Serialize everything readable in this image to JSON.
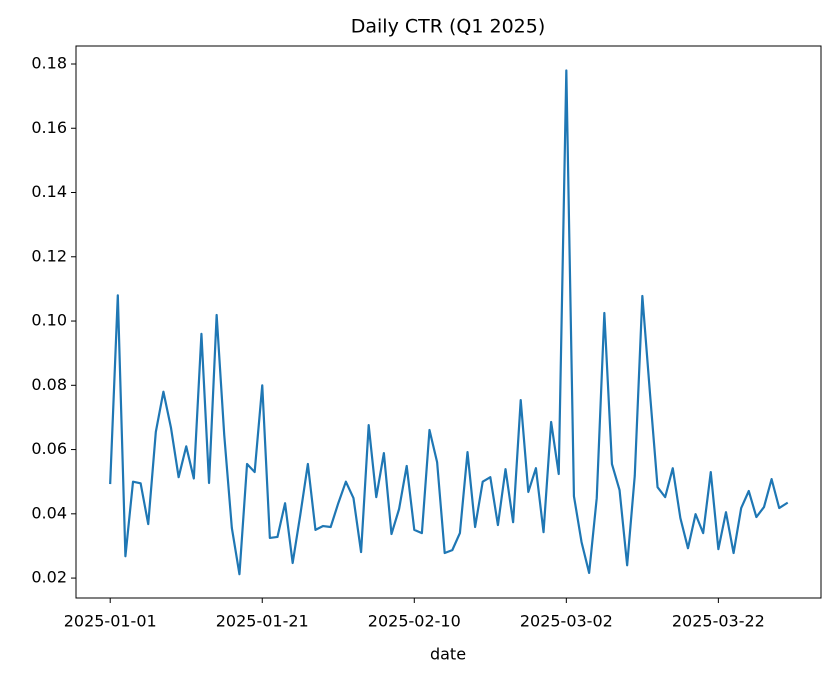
{
  "chart_data": {
    "type": "line",
    "title": "Daily CTR (Q1 2025)",
    "x_label": "date",
    "x": [
      "2025-01-01",
      "2025-01-02",
      "2025-01-03",
      "2025-01-04",
      "2025-01-05",
      "2025-01-06",
      "2025-01-07",
      "2025-01-08",
      "2025-01-09",
      "2025-01-10",
      "2025-01-11",
      "2025-01-12",
      "2025-01-13",
      "2025-01-14",
      "2025-01-15",
      "2025-01-16",
      "2025-01-17",
      "2025-01-18",
      "2025-01-19",
      "2025-01-20",
      "2025-01-21",
      "2025-01-22",
      "2025-01-23",
      "2025-01-24",
      "2025-01-25",
      "2025-01-26",
      "2025-01-27",
      "2025-01-28",
      "2025-01-29",
      "2025-01-30",
      "2025-01-31",
      "2025-02-01",
      "2025-02-02",
      "2025-02-03",
      "2025-02-04",
      "2025-02-05",
      "2025-02-06",
      "2025-02-07",
      "2025-02-08",
      "2025-02-09",
      "2025-02-10",
      "2025-02-11",
      "2025-02-12",
      "2025-02-13",
      "2025-02-14",
      "2025-02-15",
      "2025-02-16",
      "2025-02-17",
      "2025-02-18",
      "2025-02-19",
      "2025-02-20",
      "2025-02-21",
      "2025-02-22",
      "2025-02-23",
      "2025-02-24",
      "2025-02-25",
      "2025-02-26",
      "2025-02-27",
      "2025-02-28",
      "2025-03-01",
      "2025-03-02",
      "2025-03-03",
      "2025-03-04",
      "2025-03-05",
      "2025-03-06",
      "2025-03-07",
      "2025-03-08",
      "2025-03-09",
      "2025-03-10",
      "2025-03-11",
      "2025-03-12",
      "2025-03-13",
      "2025-03-14",
      "2025-03-15",
      "2025-03-16",
      "2025-03-17",
      "2025-03-18",
      "2025-03-19",
      "2025-03-20",
      "2025-03-21",
      "2025-03-22",
      "2025-03-23",
      "2025-03-24",
      "2025-03-25",
      "2025-03-26",
      "2025-03-27",
      "2025-03-28",
      "2025-03-29",
      "2025-03-30",
      "2025-03-31"
    ],
    "values": [
      0.0496,
      0.108,
      0.0268,
      0.05,
      0.0495,
      0.0368,
      0.0655,
      0.078,
      0.0667,
      0.0514,
      0.061,
      0.051,
      0.096,
      0.0496,
      0.1019,
      0.0645,
      0.0356,
      0.0212,
      0.0555,
      0.053,
      0.08,
      0.0325,
      0.0328,
      0.0433,
      0.0247,
      0.0396,
      0.0555,
      0.035,
      0.0362,
      0.0359,
      0.0433,
      0.05,
      0.0449,
      0.0281,
      0.0676,
      0.0452,
      0.0589,
      0.0337,
      0.0415,
      0.0549,
      0.035,
      0.034,
      0.0661,
      0.0561,
      0.0278,
      0.0287,
      0.034,
      0.0592,
      0.0359,
      0.05,
      0.0514,
      0.0365,
      0.0539,
      0.0374,
      0.0754,
      0.0468,
      0.0542,
      0.0343,
      0.0686,
      0.0524,
      0.178,
      0.0455,
      0.0312,
      0.0216,
      0.0449,
      0.1025,
      0.0555,
      0.0474,
      0.024,
      0.0518,
      0.1078,
      0.0776,
      0.0483,
      0.0452,
      0.0542,
      0.0387,
      0.0293,
      0.0399,
      0.034,
      0.053,
      0.029,
      0.0405,
      0.0278,
      0.0418,
      0.0471,
      0.039,
      0.0421,
      0.0508,
      0.0418,
      0.0433
    ],
    "color": "#1f77b4",
    "xlim": [
      "2024-12-27T12:00Z",
      "2025-04-04T12:00Z"
    ],
    "xticks": [
      "2025-01-01",
      "2025-01-21",
      "2025-02-10",
      "2025-03-02",
      "2025-03-22"
    ],
    "ylim": [
      0.0138,
      0.1856
    ],
    "yticks": [
      0.02,
      0.04,
      0.06,
      0.08,
      {
        "value": 0.1,
        "label": "0.10"
      },
      0.12,
      0.14,
      0.16,
      0.18
    ],
    "grid": false
  }
}
